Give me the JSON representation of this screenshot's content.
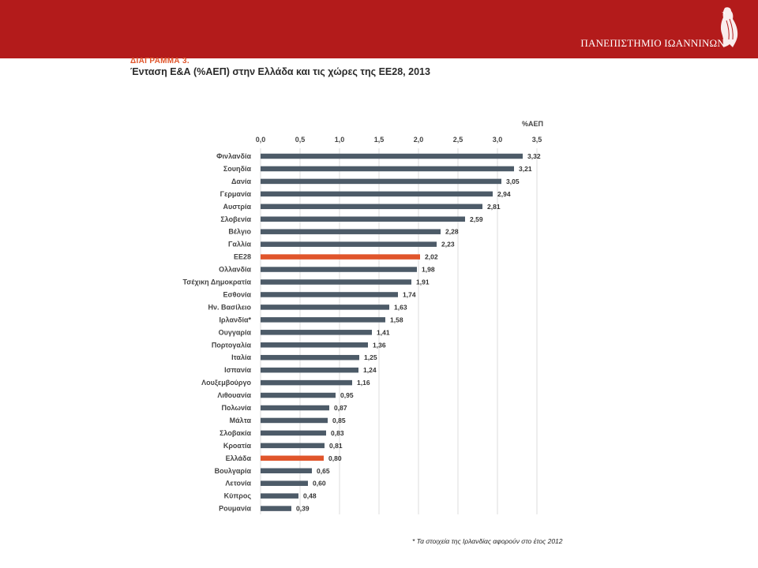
{
  "header": {
    "university": "ΠΑΝΕΠΙΣΤΗΜΙΟ ΙΩΑΝΝΙΝΩΝ",
    "accent_color": "#b31b1b"
  },
  "figure_label": "ΔΙΑΓΡΑΜΜΑ 3.",
  "chart_title": "Ένταση Ε&Α (%ΑΕΠ) στην Ελλάδα και τις χώρες της ΕΕ28, 2013",
  "footnote": "* Τα στοιχεία της Ιρλανδίας αφορούν στο έτος 2012",
  "chart_data": {
    "type": "bar",
    "orientation": "horizontal",
    "unit_label": "%ΑΕΠ",
    "xlim": [
      0,
      3.5
    ],
    "ticks": [
      "0,0",
      "0,5",
      "1,0",
      "1,5",
      "2,0",
      "2,5",
      "3,0",
      "3,5"
    ],
    "tick_values": [
      0,
      0.5,
      1.0,
      1.5,
      2.0,
      2.5,
      3.0,
      3.5
    ],
    "grid": true,
    "bar_color": "#4d5b68",
    "highlight_color": "#e0552b",
    "categories": [
      "Φινλανδία",
      "Σουηδία",
      "Δανία",
      "Γερμανία",
      "Αυστρία",
      "Σλοβενία",
      "Βέλγιο",
      "Γαλλία",
      "ΕΕ28",
      "Ολλανδία",
      "Τσέχικη Δημοκρατία",
      "Εσθονία",
      "Ην. Βασίλειο",
      "Ιρλανδία*",
      "Ουγγαρία",
      "Πορτογαλία",
      "Ιταλία",
      "Ισπανία",
      "Λουξεμβούργο",
      "Λιθουανία",
      "Πολωνία",
      "Μάλτα",
      "Σλοβακία",
      "Κροατία",
      "Ελλάδα",
      "Βουλγαρία",
      "Λετονία",
      "Κύπρος",
      "Ρουμανία"
    ],
    "values": [
      3.32,
      3.21,
      3.05,
      2.94,
      2.81,
      2.59,
      2.28,
      2.23,
      2.02,
      1.98,
      1.91,
      1.74,
      1.63,
      1.58,
      1.41,
      1.36,
      1.25,
      1.24,
      1.16,
      0.95,
      0.87,
      0.85,
      0.83,
      0.81,
      0.8,
      0.65,
      0.6,
      0.48,
      0.39
    ],
    "value_labels": [
      "3,32",
      "3,21",
      "3,05",
      "2,94",
      "2,81",
      "2,59",
      "2,28",
      "2,23",
      "2,02",
      "1,98",
      "1,91",
      "1,74",
      "1,63",
      "1,58",
      "1,41",
      "1,36",
      "1,25",
      "1,24",
      "1,16",
      "0,95",
      "0,87",
      "0,85",
      "0,83",
      "0,81",
      "0,80",
      "0,65",
      "0,60",
      "0,48",
      "0,39"
    ],
    "highlighted": [
      "ΕΕ28",
      "Ελλάδα"
    ]
  }
}
